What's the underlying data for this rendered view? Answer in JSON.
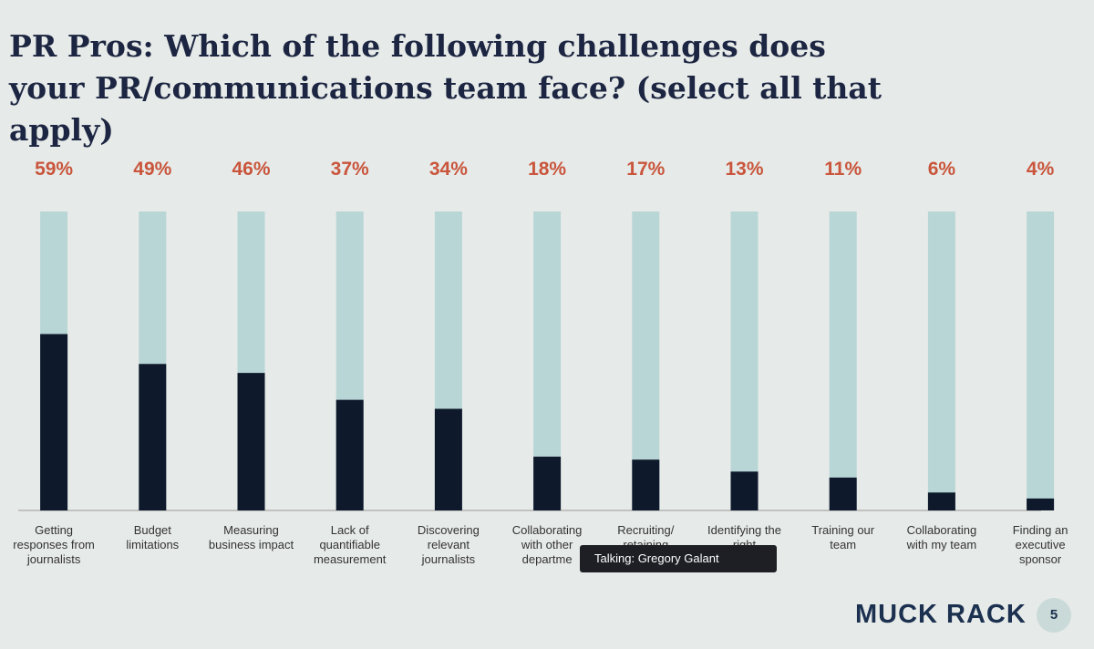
{
  "chart_data": {
    "type": "bar",
    "title": "PR Pros: Which of the following challenges does your PR/communications team face? (select all that apply)",
    "categories": [
      "Getting responses from journalists",
      "Budget limitations",
      "Measuring business impact",
      "Lack of quantifiable measurement",
      "Discovering relevant journalists",
      "Collaborating with other departme",
      "Recruiting/ retaining",
      "Identifying the right",
      "Training our team",
      "Collaborating with my team",
      "Finding an executive sponsor"
    ],
    "values": [
      59,
      49,
      46,
      37,
      34,
      18,
      17,
      13,
      11,
      6,
      4
    ],
    "value_labels": [
      "59%",
      "49%",
      "46%",
      "37%",
      "34%",
      "18%",
      "17%",
      "13%",
      "11%",
      "6%",
      "4%"
    ],
    "ylim": [
      0,
      100
    ],
    "color": "#0e1a2b",
    "track_color": "#b9d6d6",
    "label_color": "#c9553c"
  },
  "tooltip": "Talking: Gregory Galant",
  "logo": "MUCK RACK",
  "page_number": "5"
}
